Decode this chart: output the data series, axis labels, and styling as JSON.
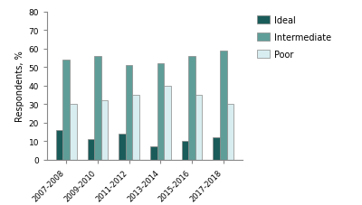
{
  "categories": [
    "2007-2008",
    "2009-2010",
    "2011-2012",
    "2013-2014",
    "2015-2016",
    "2017-2018"
  ],
  "ideal": [
    16,
    11,
    14,
    7,
    10,
    12
  ],
  "intermediate": [
    54,
    56,
    51,
    52,
    56,
    59
  ],
  "poor": [
    30,
    32,
    35,
    40,
    35,
    30
  ],
  "color_ideal": "#1a5c5a",
  "color_intermediate": "#5f9e98",
  "color_poor": "#d8edf0",
  "ylabel": "Respondents, %",
  "ylim": [
    0,
    80
  ],
  "yticks": [
    0,
    10,
    20,
    30,
    40,
    50,
    60,
    70,
    80
  ],
  "legend_labels": [
    "Ideal",
    "Intermediate",
    "Poor"
  ],
  "bar_width": 0.22,
  "background_color": "#ffffff",
  "spine_color": "#888888",
  "tick_color": "#888888"
}
